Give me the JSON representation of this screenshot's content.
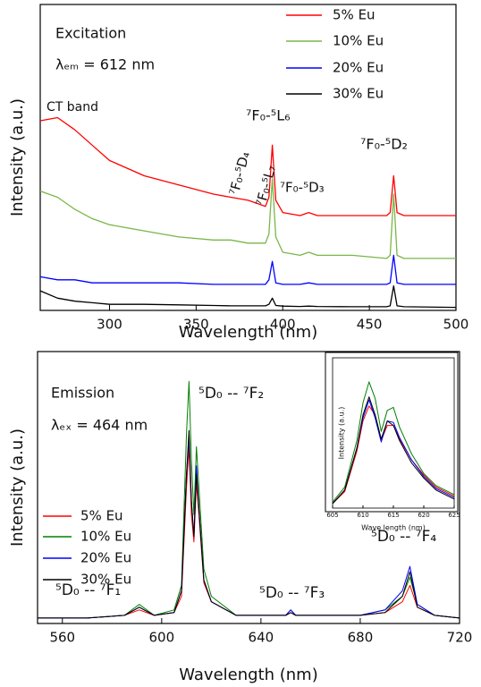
{
  "chart_data": [
    {
      "type": "line",
      "xlabel": "Wavelength (nm)",
      "ylabel": "Intensity (a.u.)",
      "xlim": [
        260,
        500
      ],
      "xticks": [
        300,
        350,
        400,
        450,
        500
      ],
      "ylim": [
        0,
        100
      ],
      "x": [
        260,
        270,
        280,
        290,
        300,
        320,
        340,
        360,
        370,
        380,
        385,
        390,
        392,
        394,
        396,
        400,
        410,
        415,
        420,
        440,
        460,
        462,
        464,
        466,
        470,
        500
      ],
      "series": [
        {
          "name": "5% Eu",
          "color": "#ff0000",
          "values": [
            62,
            63,
            59,
            54,
            49,
            44,
            41,
            38,
            37,
            36,
            35,
            34,
            37,
            54,
            36,
            32,
            31,
            32,
            31,
            31,
            31,
            32,
            44,
            32,
            31,
            31
          ]
        },
        {
          "name": "10% Eu",
          "color": "#7ab648",
          "values": [
            39,
            37,
            33,
            30,
            28,
            26,
            24,
            23,
            23,
            22,
            22,
            22,
            25,
            43,
            24,
            19,
            18,
            19,
            18,
            18,
            17,
            18,
            38,
            18,
            17,
            17
          ]
        },
        {
          "name": "20% Eu",
          "color": "#0000ff",
          "values": [
            11,
            10,
            10,
            9,
            9,
            9,
            9,
            8.5,
            8.5,
            8.5,
            8.5,
            8.5,
            10,
            16,
            9,
            8.5,
            8.5,
            9,
            8.5,
            8.5,
            8.5,
            9,
            18,
            9,
            8.5,
            8.5
          ]
        },
        {
          "name": "30% Eu",
          "color": "#000000",
          "values": [
            6.4,
            4,
            3,
            2.5,
            2,
            2,
            1.8,
            1.6,
            1.5,
            1.5,
            1.5,
            1.5,
            2,
            4,
            1.6,
            1.4,
            1.3,
            1.4,
            1.3,
            1.2,
            1.2,
            1.5,
            8,
            1.5,
            1.2,
            1
          ]
        }
      ],
      "annotations": [
        "Excitation",
        "λₑₘ = 612 nm",
        "CT band",
        "⁷F₀-⁵L₆",
        "⁷F₀-⁵D₄",
        "⁷F₀-⁵L₇",
        "⁷F₀-⁵D₃",
        "⁷F₀-⁵D₂"
      ]
    },
    {
      "type": "line",
      "xlabel": "Wavelength (nm)",
      "ylabel": "Intensity (a.u.)",
      "xlim": [
        550,
        720
      ],
      "xticks": [
        560,
        600,
        640,
        680,
        720
      ],
      "ylim": [
        0,
        100
      ],
      "x": [
        550,
        570,
        585,
        591,
        597,
        605,
        608,
        610,
        611,
        612,
        613,
        614,
        615,
        617,
        620,
        630,
        650,
        652,
        654,
        680,
        690,
        697,
        700,
        703,
        710,
        720
      ],
      "series": [
        {
          "name": "5% Eu",
          "color": "#ff0000",
          "values": [
            2,
            2,
            3,
            5,
            3,
            4,
            10,
            50,
            65,
            40,
            30,
            52,
            40,
            15,
            8,
            3,
            3,
            4,
            3,
            3,
            4,
            8,
            14,
            6,
            3,
            2
          ]
        },
        {
          "name": "10% Eu",
          "color": "#008000",
          "values": [
            2,
            2,
            3,
            7,
            3,
            5,
            14,
            70,
            89,
            60,
            40,
            65,
            50,
            20,
            10,
            3,
            3,
            5,
            3,
            3,
            5,
            10,
            17,
            7,
            3,
            2
          ]
        },
        {
          "name": "20% Eu",
          "color": "#0000ff",
          "values": [
            2,
            2,
            3,
            6,
            3,
            4,
            12,
            55,
            68,
            45,
            32,
            58,
            42,
            16,
            8,
            3,
            3,
            5,
            3,
            3,
            5,
            12,
            21,
            7,
            3,
            2
          ]
        },
        {
          "name": "30% Eu",
          "color": "#000000",
          "values": [
            2,
            2,
            3,
            6,
            3,
            4,
            12,
            55,
            71,
            45,
            32,
            55,
            42,
            16,
            8,
            3,
            3,
            4,
            3,
            3,
            4,
            10,
            19,
            6,
            3,
            2
          ]
        }
      ],
      "annotations": [
        "Emission",
        "λₑₓ = 464 nm",
        "⁵D₀ -- ⁷F₂",
        "⁵D₀ -- ⁷F₁",
        "⁵D₀ -- ⁷F₃",
        "⁵D₀ -- ⁷F₄"
      ]
    },
    {
      "type": "line",
      "xlabel": "Wave length (nm)",
      "ylabel": "Intensity (a.u.)",
      "xlim": [
        605,
        625
      ],
      "xticks": [
        605,
        610,
        615,
        620,
        625
      ],
      "ylim": [
        0,
        100
      ],
      "x": [
        605,
        607,
        609,
        610,
        611,
        612,
        613,
        614,
        615,
        616,
        618,
        620,
        622,
        625
      ],
      "series": [
        {
          "color": "#ff0000",
          "values": [
            3,
            11,
            38,
            58,
            68,
            62,
            45,
            55,
            55,
            46,
            32,
            22,
            14,
            8
          ]
        },
        {
          "color": "#008000",
          "values": [
            4,
            14,
            45,
            70,
            84,
            73,
            51,
            65,
            67,
            54,
            36,
            23,
            15,
            9
          ]
        },
        {
          "color": "#0000ff",
          "values": [
            3,
            12,
            40,
            60,
            72,
            60,
            44,
            58,
            57,
            47,
            32,
            21,
            13,
            7
          ]
        },
        {
          "color": "#000000",
          "values": [
            3,
            12,
            40,
            62,
            74,
            62,
            46,
            58,
            55,
            45,
            30,
            20,
            12,
            6
          ]
        }
      ]
    }
  ]
}
